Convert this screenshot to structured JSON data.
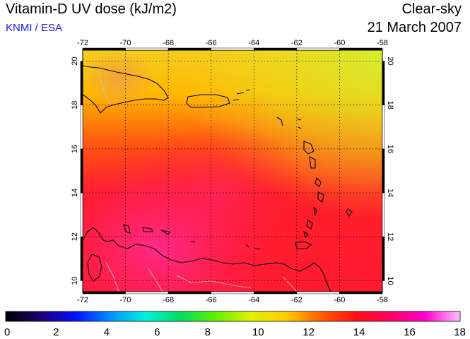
{
  "header": {
    "title": "Vitamin-D UV dose (kJ/m2)",
    "credit": "KNMI / ESA",
    "sky_condition": "Clear-sky",
    "date": "21 March 2007"
  },
  "map": {
    "lon_range": [
      -72,
      -58
    ],
    "lat_range": [
      9.5,
      20.5
    ],
    "lon_ticks": [
      "-72",
      "-70",
      "-68",
      "-66",
      "-64",
      "-62",
      "-60",
      "-58"
    ],
    "lat_ticks": [
      "10",
      "12",
      "14",
      "16",
      "18",
      "20"
    ],
    "gridlines": true,
    "colors": {
      "north_low_dose": "#f2e21c",
      "mid_dose": "#ff6a00",
      "high_dose": "#ff1a2a",
      "peak_dose": "#ff2a90",
      "coastline": "#000000",
      "borders": "#c0c0c0"
    }
  },
  "colorbar": {
    "range": [
      0,
      18
    ],
    "ticks": [
      "0",
      "2",
      "4",
      "6",
      "8",
      "10",
      "12",
      "14",
      "16",
      "18"
    ],
    "colors": [
      "#000000",
      "#1e0070",
      "#0010ff",
      "#0090ff",
      "#00f0e0",
      "#00e060",
      "#60f000",
      "#e0f000",
      "#ffd000",
      "#ff6000",
      "#ff1010",
      "#ff0060",
      "#ff00d0",
      "#ffc0ff"
    ]
  }
}
